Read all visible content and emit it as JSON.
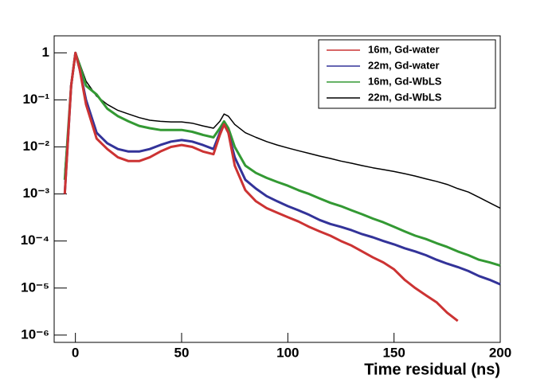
{
  "chart_data": {
    "type": "line",
    "x_label": "Time residual (ns)",
    "x": [
      -5,
      -2,
      0,
      2,
      5,
      10,
      15,
      20,
      25,
      30,
      35,
      40,
      45,
      50,
      55,
      60,
      65,
      68,
      70,
      72,
      75,
      80,
      85,
      90,
      95,
      100,
      105,
      110,
      115,
      120,
      125,
      130,
      135,
      140,
      145,
      150,
      155,
      160,
      165,
      170,
      175,
      180,
      185,
      190,
      195,
      200
    ],
    "series": [
      {
        "name": "16m, Gd-water",
        "color": "#cc3333",
        "values": [
          0.001,
          0.2,
          1,
          0.45,
          0.08,
          0.015,
          0.009,
          0.006,
          0.005,
          0.005,
          0.006,
          0.008,
          0.01,
          0.011,
          0.01,
          0.008,
          0.007,
          0.018,
          0.03,
          0.02,
          0.004,
          0.0012,
          0.0007,
          0.0005,
          0.0004,
          0.00032,
          0.00026,
          0.0002,
          0.00016,
          0.00013,
          0.0001,
          8e-05,
          6e-05,
          4.5e-05,
          3.5e-05,
          2.5e-05,
          1.5e-05,
          1e-05,
          7e-06,
          5e-06,
          3e-06,
          2e-06,
          null,
          null,
          null,
          null
        ]
      },
      {
        "name": "22m, Gd-water",
        "color": "#333399",
        "values": [
          0.001,
          0.2,
          1,
          0.45,
          0.1,
          0.02,
          0.012,
          0.009,
          0.008,
          0.008,
          0.009,
          0.011,
          0.013,
          0.014,
          0.013,
          0.011,
          0.009,
          0.02,
          0.03,
          0.02,
          0.006,
          0.002,
          0.0013,
          0.0009,
          0.0007,
          0.00055,
          0.00045,
          0.00036,
          0.00028,
          0.00023,
          0.0002,
          0.00017,
          0.00014,
          0.00012,
          0.0001,
          8.5e-05,
          7e-05,
          6e-05,
          5e-05,
          4e-05,
          3.3e-05,
          2.8e-05,
          2.3e-05,
          1.8e-05,
          1.5e-05,
          1.2e-05
        ]
      },
      {
        "name": "16m, Gd-WbLS",
        "color": "#339933",
        "values": [
          0.002,
          0.2,
          1,
          0.55,
          0.2,
          0.13,
          0.065,
          0.045,
          0.035,
          0.028,
          0.025,
          0.023,
          0.023,
          0.023,
          0.021,
          0.018,
          0.016,
          0.025,
          0.035,
          0.025,
          0.01,
          0.004,
          0.0028,
          0.0022,
          0.0018,
          0.0015,
          0.0012,
          0.001,
          0.0008,
          0.00065,
          0.00055,
          0.00045,
          0.00037,
          0.0003,
          0.00025,
          0.0002,
          0.00016,
          0.00013,
          0.00011,
          9e-05,
          7.5e-05,
          6e-05,
          5e-05,
          4e-05,
          3.5e-05,
          3e-05
        ]
      },
      {
        "name": "22m, Gd-WbLS",
        "color": "#000000",
        "values": [
          0.003,
          0.2,
          1,
          0.6,
          0.25,
          0.12,
          0.08,
          0.06,
          0.05,
          0.042,
          0.037,
          0.035,
          0.034,
          0.034,
          0.032,
          0.028,
          0.025,
          0.035,
          0.05,
          0.045,
          0.03,
          0.02,
          0.016,
          0.013,
          0.011,
          0.0095,
          0.0083,
          0.0073,
          0.0064,
          0.0057,
          0.005,
          0.0045,
          0.004,
          0.0036,
          0.0033,
          0.003,
          0.0027,
          0.0024,
          0.0021,
          0.00185,
          0.0016,
          0.0013,
          0.0011,
          0.00085,
          0.00065,
          0.0005
        ]
      }
    ],
    "xlim": [
      -10,
      200
    ],
    "xticks": [
      0,
      50,
      100,
      150,
      200
    ],
    "ylim": [
      7e-07,
      2.3
    ],
    "log_y": true,
    "yticks": [
      1,
      {
        "value": 0.1,
        "label": "10⁻¹"
      },
      {
        "value": 0.01,
        "label": "10⁻²"
      },
      {
        "value": 0.001,
        "label": "10⁻³"
      },
      {
        "value": 0.0001,
        "label": "10⁻⁴"
      },
      {
        "value": 1e-05,
        "label": "10⁻⁵"
      },
      {
        "value": 1e-06,
        "label": "10⁻⁶"
      }
    ],
    "legend": "top-right"
  }
}
